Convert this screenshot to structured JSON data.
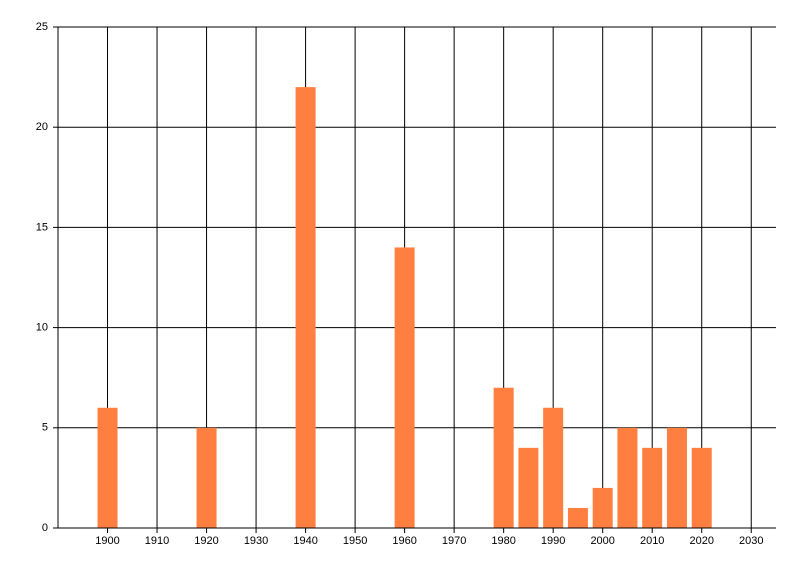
{
  "chart_data": {
    "type": "bar",
    "x": [
      1900,
      1920,
      1940,
      1960,
      1980,
      1985,
      1990,
      1995,
      2000,
      2005,
      2010,
      2015,
      2020
    ],
    "values": [
      6,
      5,
      22,
      14,
      7,
      4,
      6,
      1,
      2,
      5,
      4,
      5,
      4
    ],
    "color": "#ff7f40",
    "xlim": [
      1890,
      2035
    ],
    "xticks": [
      1900,
      1910,
      1920,
      1930,
      1940,
      1950,
      1960,
      1970,
      1980,
      1990,
      2000,
      2010,
      2020,
      2030
    ],
    "ylim": [
      0,
      25
    ],
    "yticks": [
      0,
      5,
      10,
      15,
      20,
      25
    ],
    "grid": true
  }
}
